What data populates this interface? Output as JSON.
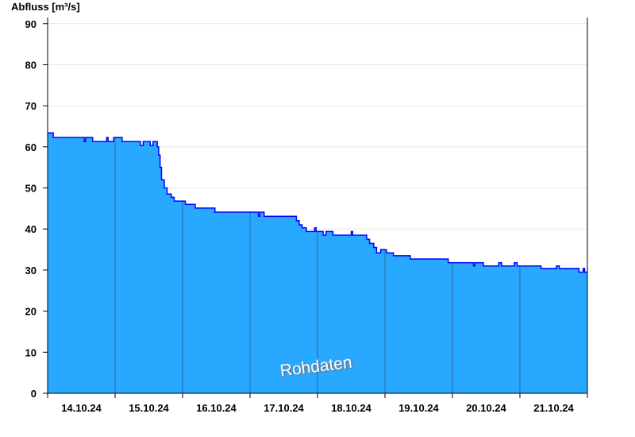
{
  "chart_data": {
    "type": "area",
    "title": "",
    "ylabel": "Abfluss [m³/s]",
    "xlabel": "",
    "ylim": [
      0,
      91.5
    ],
    "xlim": [
      "2024-10-14T00:00",
      "2024-10-22T00:00"
    ],
    "yticks": [
      "0",
      "10",
      "20",
      "30",
      "40",
      "50",
      "60",
      "70",
      "80",
      "90"
    ],
    "xtick_labels": [
      "14.10.24",
      "15.10.24",
      "16.10.24",
      "17.10.24",
      "18.10.24",
      "19.10.24",
      "20.10.24",
      "21.10.24"
    ],
    "grid": true,
    "watermark": "Rohdaten",
    "colors": {
      "fill": "#29a8ff",
      "line": "#0000ff",
      "day_line": "#336699"
    },
    "series": [
      {
        "step": true,
        "points": [
          [
            "2024-10-14T00:00",
            63.4
          ],
          [
            "2024-10-14T02:00",
            62.3
          ],
          [
            "2024-10-14T13:00",
            61.3
          ],
          [
            "2024-10-14T13:30",
            62.3
          ],
          [
            "2024-10-14T16:00",
            61.3
          ],
          [
            "2024-10-14T21:00",
            62.3
          ],
          [
            "2024-10-14T21:30",
            61.3
          ],
          [
            "2024-10-14T23:30",
            62.3
          ],
          [
            "2024-10-15T02:30",
            61.3
          ],
          [
            "2024-10-15T09:00",
            60.3
          ],
          [
            "2024-10-15T10:00",
            61.3
          ],
          [
            "2024-10-15T12:30",
            60.3
          ],
          [
            "2024-10-15T13:30",
            61.3
          ],
          [
            "2024-10-15T15:00",
            60.0
          ],
          [
            "2024-10-15T15:30",
            58.0
          ],
          [
            "2024-10-15T16:00",
            55.0
          ],
          [
            "2024-10-15T16:30",
            52.0
          ],
          [
            "2024-10-15T17:30",
            50.0
          ],
          [
            "2024-10-15T18:30",
            48.5
          ],
          [
            "2024-10-15T20:00",
            47.7
          ],
          [
            "2024-10-15T21:00",
            46.8
          ],
          [
            "2024-10-16T01:00",
            46.0
          ],
          [
            "2024-10-16T04:30",
            45.1
          ],
          [
            "2024-10-16T11:30",
            44.1
          ],
          [
            "2024-10-17T03:00",
            43.1
          ],
          [
            "2024-10-17T03:30",
            44.1
          ],
          [
            "2024-10-17T05:00",
            43.1
          ],
          [
            "2024-10-17T16:30",
            42.0
          ],
          [
            "2024-10-17T17:30",
            41.0
          ],
          [
            "2024-10-17T18:30",
            40.3
          ],
          [
            "2024-10-17T20:00",
            39.4
          ],
          [
            "2024-10-17T23:00",
            40.3
          ],
          [
            "2024-10-17T23:30",
            39.4
          ],
          [
            "2024-10-18T02:00",
            38.5
          ],
          [
            "2024-10-18T03:00",
            39.4
          ],
          [
            "2024-10-18T05:30",
            38.5
          ],
          [
            "2024-10-18T12:00",
            39.4
          ],
          [
            "2024-10-18T12:30",
            38.5
          ],
          [
            "2024-10-18T17:30",
            37.5
          ],
          [
            "2024-10-18T18:30",
            36.5
          ],
          [
            "2024-10-18T20:00",
            35.5
          ],
          [
            "2024-10-18T21:00",
            34.2
          ],
          [
            "2024-10-18T22:30",
            35.0
          ],
          [
            "2024-10-19T00:30",
            34.2
          ],
          [
            "2024-10-19T03:00",
            33.5
          ],
          [
            "2024-10-19T09:00",
            32.7
          ],
          [
            "2024-10-19T22:30",
            31.8
          ],
          [
            "2024-10-20T07:30",
            31.0
          ],
          [
            "2024-10-20T08:00",
            31.8
          ],
          [
            "2024-10-20T11:00",
            31.0
          ],
          [
            "2024-10-20T16:30",
            31.8
          ],
          [
            "2024-10-20T17:30",
            31.0
          ],
          [
            "2024-10-20T22:00",
            31.8
          ],
          [
            "2024-10-20T23:00",
            31.0
          ],
          [
            "2024-10-21T07:30",
            30.4
          ],
          [
            "2024-10-21T13:00",
            31.0
          ],
          [
            "2024-10-21T14:00",
            30.4
          ],
          [
            "2024-10-21T21:00",
            29.5
          ],
          [
            "2024-10-21T22:30",
            30.4
          ],
          [
            "2024-10-21T23:00",
            29.5
          ]
        ]
      }
    ]
  }
}
